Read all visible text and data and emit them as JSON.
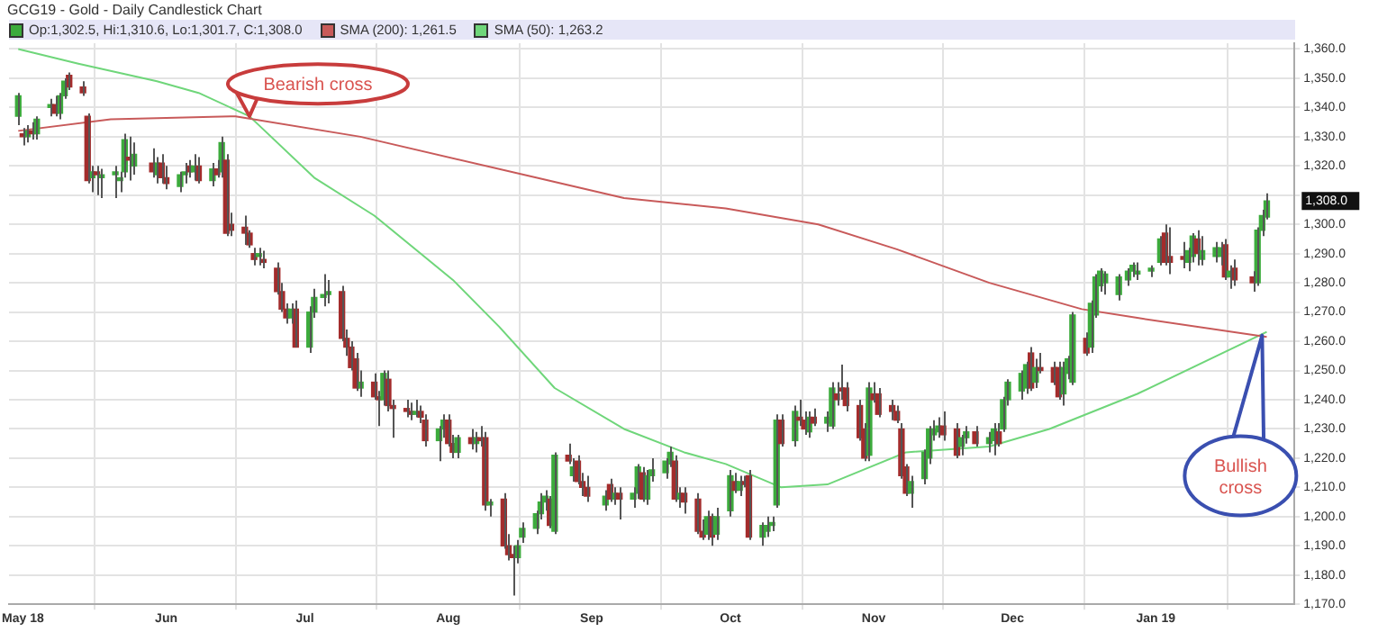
{
  "chart_data": {
    "type": "candlestick",
    "title": "GCG19 - Gold - Daily Candlestick Chart",
    "annotations": [
      "Op:1,302.5, Hi:1,310.6, Lo:1,301.7, C:1,308.0",
      {
        "text": "Bearish cross",
        "x": "2018-06-19",
        "y": 1337
      },
      {
        "text": "Bullish cross",
        "x": "2019-01-24",
        "y": 1262
      },
      "1,308.0"
    ],
    "x": [
      "2018-04-30",
      "2018-05-01",
      "2018-05-02",
      "2018-05-03",
      "2018-05-04",
      "2018-05-07",
      "2018-05-08",
      "2018-05-09",
      "2018-05-10",
      "2018-05-11",
      "2018-05-14",
      "2018-05-15",
      "2018-05-16",
      "2018-05-17",
      "2018-05-18",
      "2018-05-21",
      "2018-05-22",
      "2018-05-23",
      "2018-05-24",
      "2018-05-25",
      "2018-05-29",
      "2018-05-30",
      "2018-05-31",
      "2018-06-01",
      "2018-06-04",
      "2018-06-05",
      "2018-06-06",
      "2018-06-07",
      "2018-06-08",
      "2018-06-11",
      "2018-06-12",
      "2018-06-13",
      "2018-06-14",
      "2018-06-15",
      "2018-06-18",
      "2018-06-19",
      "2018-06-20",
      "2018-06-21",
      "2018-06-22",
      "2018-06-25",
      "2018-06-26",
      "2018-06-27",
      "2018-06-28",
      "2018-06-29",
      "2018-07-02",
      "2018-07-03",
      "2018-07-05",
      "2018-07-06",
      "2018-07-09",
      "2018-07-10",
      "2018-07-11",
      "2018-07-12",
      "2018-07-13",
      "2018-07-16",
      "2018-07-17",
      "2018-07-18",
      "2018-07-19",
      "2018-07-20",
      "2018-07-23",
      "2018-07-24",
      "2018-07-25",
      "2018-07-26",
      "2018-07-27",
      "2018-07-30",
      "2018-07-31",
      "2018-08-01",
      "2018-08-02",
      "2018-08-03",
      "2018-08-06",
      "2018-08-07",
      "2018-08-08",
      "2018-08-09",
      "2018-08-10",
      "2018-08-13",
      "2018-08-14",
      "2018-08-15",
      "2018-08-16",
      "2018-08-17",
      "2018-08-20",
      "2018-08-21",
      "2018-08-22",
      "2018-08-23",
      "2018-08-24",
      "2018-08-27",
      "2018-08-28",
      "2018-08-29",
      "2018-08-30",
      "2018-08-31",
      "2018-09-04",
      "2018-09-05",
      "2018-09-06",
      "2018-09-07",
      "2018-09-10",
      "2018-09-11",
      "2018-09-12",
      "2018-09-13",
      "2018-09-14",
      "2018-09-17",
      "2018-09-18",
      "2018-09-19",
      "2018-09-20",
      "2018-09-21",
      "2018-09-24",
      "2018-09-25",
      "2018-09-26",
      "2018-09-27",
      "2018-09-28",
      "2018-10-01",
      "2018-10-02",
      "2018-10-03",
      "2018-10-04",
      "2018-10-05",
      "2018-10-08",
      "2018-10-09",
      "2018-10-10",
      "2018-10-11",
      "2018-10-12",
      "2018-10-15",
      "2018-10-16",
      "2018-10-17",
      "2018-10-18",
      "2018-10-19",
      "2018-10-22",
      "2018-10-23",
      "2018-10-24",
      "2018-10-25",
      "2018-10-26",
      "2018-10-29",
      "2018-10-30",
      "2018-10-31",
      "2018-11-01",
      "2018-11-02",
      "2018-11-05",
      "2018-11-06",
      "2018-11-07",
      "2018-11-08",
      "2018-11-09",
      "2018-11-12",
      "2018-11-13",
      "2018-11-14",
      "2018-11-15",
      "2018-11-16",
      "2018-11-19",
      "2018-11-20",
      "2018-11-21",
      "2018-11-23",
      "2018-11-26",
      "2018-11-27",
      "2018-11-28",
      "2018-11-29",
      "2018-11-30",
      "2018-12-03",
      "2018-12-04",
      "2018-12-05",
      "2018-12-06",
      "2018-12-07",
      "2018-12-10",
      "2018-12-11",
      "2018-12-12",
      "2018-12-13",
      "2018-12-14",
      "2018-12-17",
      "2018-12-18",
      "2018-12-19",
      "2018-12-20",
      "2018-12-21",
      "2018-12-24",
      "2018-12-26",
      "2018-12-27",
      "2018-12-28",
      "2018-12-31",
      "2019-01-02",
      "2019-01-03",
      "2019-01-04",
      "2019-01-07",
      "2019-01-08",
      "2019-01-09",
      "2019-01-10",
      "2019-01-11",
      "2019-01-14",
      "2019-01-15",
      "2019-01-16",
      "2019-01-17",
      "2019-01-18",
      "2019-01-22",
      "2019-01-23",
      "2019-01-24",
      "2019-01-25"
    ],
    "ohlc": [
      [
        1337,
        1345,
        1334,
        1344
      ],
      [
        1331,
        1333,
        1327,
        1330
      ],
      [
        1330,
        1334,
        1328,
        1332
      ],
      [
        1332,
        1335,
        1329,
        1331
      ],
      [
        1331,
        1337,
        1329,
        1336
      ],
      [
        1340,
        1343,
        1337,
        1341
      ],
      [
        1341,
        1344,
        1337,
        1338
      ],
      [
        1338,
        1345,
        1336,
        1344
      ],
      [
        1344,
        1350,
        1343,
        1349
      ],
      [
        1351,
        1352,
        1346,
        1347
      ],
      [
        1347,
        1349,
        1344,
        1345
      ],
      [
        1337,
        1338,
        1314,
        1315
      ],
      [
        1316,
        1320,
        1311,
        1318
      ],
      [
        1318,
        1320,
        1310,
        1317
      ],
      [
        1316,
        1319,
        1309,
        1317
      ],
      [
        1317,
        1320,
        1309,
        1318
      ],
      [
        1315,
        1318,
        1311,
        1316
      ],
      [
        1318,
        1331,
        1316,
        1329
      ],
      [
        1323,
        1330,
        1315,
        1322
      ],
      [
        1320,
        1328,
        1317,
        1324
      ],
      [
        1321,
        1326,
        1316,
        1318
      ],
      [
        1317,
        1323,
        1314,
        1321
      ],
      [
        1321,
        1324,
        1314,
        1316
      ],
      [
        1316,
        1320,
        1312,
        1314
      ],
      [
        1313,
        1318,
        1311,
        1317
      ],
      [
        1317,
        1321,
        1314,
        1318
      ],
      [
        1320,
        1322,
        1316,
        1318
      ],
      [
        1318,
        1324,
        1315,
        1320
      ],
      [
        1320,
        1323,
        1314,
        1315
      ],
      [
        1315,
        1321,
        1313,
        1319
      ],
      [
        1319,
        1322,
        1316,
        1317
      ],
      [
        1318,
        1330,
        1316,
        1328
      ],
      [
        1322,
        1324,
        1296,
        1297
      ],
      [
        1300,
        1304,
        1296,
        1298
      ],
      [
        1299,
        1303,
        1293,
        1297
      ],
      [
        1297,
        1298,
        1292,
        1293
      ],
      [
        1290,
        1292,
        1286,
        1288
      ],
      [
        1289,
        1292,
        1286,
        1290
      ],
      [
        1288,
        1291,
        1285,
        1287
      ],
      [
        1285,
        1287,
        1276,
        1277
      ],
      [
        1277,
        1280,
        1270,
        1271
      ],
      [
        1271,
        1273,
        1266,
        1268
      ],
      [
        1268,
        1273,
        1266,
        1271
      ],
      [
        1271,
        1274,
        1258,
        1258
      ],
      [
        1258,
        1272,
        1256,
        1270
      ],
      [
        1270,
        1278,
        1268,
        1275
      ],
      [
        1275,
        1283,
        1272,
        1276
      ],
      [
        1276,
        1281,
        1273,
        1277
      ],
      [
        1277,
        1279,
        1260,
        1261
      ],
      [
        1261,
        1264,
        1255,
        1258
      ],
      [
        1258,
        1260,
        1250,
        1251
      ],
      [
        1254,
        1256,
        1243,
        1244
      ],
      [
        1244,
        1250,
        1241,
        1246
      ],
      [
        1246,
        1249,
        1240,
        1241
      ],
      [
        1241,
        1243,
        1231,
        1240
      ],
      [
        1240,
        1250,
        1238,
        1249
      ],
      [
        1247,
        1250,
        1236,
        1238
      ],
      [
        1238,
        1240,
        1227,
        1237
      ],
      [
        1237,
        1240,
        1234,
        1236
      ],
      [
        1236,
        1239,
        1233,
        1235
      ],
      [
        1235,
        1240,
        1234,
        1236
      ],
      [
        1236,
        1238,
        1232,
        1234
      ],
      [
        1233,
        1235,
        1224,
        1226
      ],
      [
        1226,
        1231,
        1219,
        1230
      ],
      [
        1230,
        1235,
        1227,
        1233
      ],
      [
        1233,
        1235,
        1224,
        1225
      ],
      [
        1225,
        1228,
        1220,
        1222
      ],
      [
        1222,
        1228,
        1220,
        1227
      ],
      [
        1227,
        1230,
        1223,
        1225
      ],
      [
        1225,
        1229,
        1222,
        1227
      ],
      [
        1227,
        1231,
        1224,
        1226
      ],
      [
        1227,
        1229,
        1202,
        1204
      ],
      [
        1204,
        1206,
        1200,
        1205
      ],
      [
        1206,
        1208,
        1189,
        1190
      ],
      [
        1190,
        1194,
        1185,
        1187
      ],
      [
        1187,
        1190,
        1173,
        1186
      ],
      [
        1186,
        1192,
        1184,
        1190
      ],
      [
        1193,
        1198,
        1191,
        1196
      ],
      [
        1196,
        1202,
        1194,
        1201
      ],
      [
        1201,
        1208,
        1199,
        1205
      ],
      [
        1205,
        1209,
        1202,
        1207
      ],
      [
        1206,
        1207,
        1196,
        1197
      ],
      [
        1195,
        1222,
        1194,
        1221
      ],
      [
        1221,
        1225,
        1218,
        1219
      ],
      [
        1214,
        1220,
        1212,
        1217
      ],
      [
        1219,
        1221,
        1211,
        1212
      ],
      [
        1212,
        1215,
        1207,
        1210
      ],
      [
        1210,
        1214,
        1205,
        1207
      ],
      [
        1204,
        1209,
        1202,
        1207
      ],
      [
        1211,
        1213,
        1205,
        1206
      ],
      [
        1206,
        1210,
        1204,
        1208
      ],
      [
        1208,
        1210,
        1199,
        1206
      ],
      [
        1206,
        1210,
        1203,
        1208
      ],
      [
        1208,
        1218,
        1206,
        1217
      ],
      [
        1215,
        1217,
        1205,
        1206
      ],
      [
        1206,
        1216,
        1204,
        1214
      ],
      [
        1214,
        1220,
        1212,
        1216
      ],
      [
        1215,
        1220,
        1213,
        1219
      ],
      [
        1218,
        1224,
        1217,
        1222
      ],
      [
        1219,
        1221,
        1205,
        1206
      ],
      [
        1206,
        1210,
        1203,
        1208
      ],
      [
        1208,
        1210,
        1201,
        1205
      ],
      [
        1206,
        1208,
        1194,
        1195
      ],
      [
        1195,
        1199,
        1192,
        1193
      ],
      [
        1194,
        1202,
        1192,
        1200
      ],
      [
        1200,
        1201,
        1190,
        1193
      ],
      [
        1194,
        1203,
        1192,
        1200
      ],
      [
        1202,
        1216,
        1200,
        1214
      ],
      [
        1212,
        1215,
        1208,
        1209
      ],
      [
        1209,
        1214,
        1207,
        1212
      ],
      [
        1212,
        1214,
        1210,
        1211
      ],
      [
        1214,
        1216,
        1192,
        1193
      ],
      [
        1193,
        1198,
        1190,
        1197
      ],
      [
        1195,
        1200,
        1193,
        1197
      ],
      [
        1197,
        1200,
        1195,
        1198
      ],
      [
        1204,
        1235,
        1203,
        1233
      ],
      [
        1233,
        1235,
        1224,
        1225
      ],
      [
        1226,
        1238,
        1224,
        1236
      ],
      [
        1234,
        1240,
        1231,
        1233
      ],
      [
        1233,
        1236,
        1228,
        1230
      ],
      [
        1229,
        1236,
        1227,
        1234
      ],
      [
        1234,
        1237,
        1231,
        1232
      ],
      [
        1232,
        1236,
        1229,
        1234
      ],
      [
        1231,
        1246,
        1230,
        1244
      ],
      [
        1242,
        1246,
        1238,
        1240
      ],
      [
        1244,
        1252,
        1240,
        1243
      ],
      [
        1244,
        1246,
        1236,
        1238
      ],
      [
        1238,
        1240,
        1226,
        1227
      ],
      [
        1230,
        1232,
        1219,
        1220
      ],
      [
        1221,
        1246,
        1219,
        1244
      ],
      [
        1242,
        1246,
        1239,
        1240
      ],
      [
        1242,
        1244,
        1234,
        1235
      ],
      [
        1238,
        1240,
        1233,
        1236
      ],
      [
        1236,
        1238,
        1232,
        1233
      ],
      [
        1230,
        1232,
        1213,
        1214
      ],
      [
        1217,
        1218,
        1207,
        1208
      ],
      [
        1208,
        1214,
        1203,
        1212
      ],
      [
        1213,
        1223,
        1211,
        1222
      ],
      [
        1220,
        1231,
        1218,
        1230
      ],
      [
        1228,
        1233,
        1226,
        1230
      ],
      [
        1229,
        1234,
        1227,
        1231
      ],
      [
        1231,
        1236,
        1226,
        1228
      ],
      [
        1230,
        1232,
        1220,
        1221
      ],
      [
        1224,
        1228,
        1221,
        1227
      ],
      [
        1227,
        1231,
        1225,
        1229
      ],
      [
        1229,
        1231,
        1224,
        1225
      ],
      [
        1225,
        1229,
        1222,
        1227
      ],
      [
        1226,
        1232,
        1221,
        1230
      ],
      [
        1229,
        1232,
        1224,
        1225
      ],
      [
        1230,
        1241,
        1229,
        1240
      ],
      [
        1240,
        1247,
        1238,
        1246
      ],
      [
        1243,
        1250,
        1240,
        1249
      ],
      [
        1244,
        1253,
        1242,
        1252
      ],
      [
        1256,
        1258,
        1243,
        1244
      ],
      [
        1246,
        1254,
        1244,
        1251
      ],
      [
        1251,
        1256,
        1249,
        1250
      ],
      [
        1251,
        1253,
        1245,
        1246
      ],
      [
        1251,
        1253,
        1240,
        1241
      ],
      [
        1242,
        1253,
        1238,
        1251
      ],
      [
        1249,
        1255,
        1247,
        1254
      ],
      [
        1246,
        1270,
        1245,
        1269
      ],
      [
        1261,
        1263,
        1255,
        1256
      ],
      [
        1258,
        1274,
        1256,
        1273
      ],
      [
        1269,
        1283,
        1268,
        1282
      ],
      [
        1279,
        1285,
        1277,
        1284
      ],
      [
        1280,
        1284,
        1276,
        1283
      ],
      [
        1276,
        1283,
        1274,
        1282
      ],
      [
        1281,
        1285,
        1279,
        1284
      ],
      [
        1284,
        1287,
        1282,
        1286
      ],
      [
        1283,
        1287,
        1281,
        1284
      ],
      [
        1284,
        1286,
        1282,
        1285
      ],
      [
        1287,
        1296,
        1286,
        1295
      ],
      [
        1297,
        1300,
        1286,
        1287
      ],
      [
        1289,
        1299,
        1283,
        1287
      ],
      [
        1289,
        1294,
        1285,
        1288
      ],
      [
        1287,
        1292,
        1284,
        1291
      ],
      [
        1289,
        1297,
        1287,
        1296
      ],
      [
        1295,
        1298,
        1286,
        1290
      ],
      [
        1288,
        1296,
        1286,
        1291
      ],
      [
        1289,
        1294,
        1287,
        1292
      ],
      [
        1289,
        1294,
        1286,
        1292
      ],
      [
        1293,
        1295,
        1281,
        1282
      ],
      [
        1282,
        1286,
        1278,
        1284
      ],
      [
        1285,
        1288,
        1279,
        1281
      ],
      [
        1282,
        1284,
        1277,
        1280
      ],
      [
        1280,
        1299,
        1279,
        1298
      ],
      [
        1298,
        1305,
        1296,
        1303
      ],
      [
        1302.5,
        1310.6,
        1301.7,
        1308.0
      ]
    ],
    "series": [
      {
        "type": "line",
        "name": "SMA (200): 1,261.5",
        "color": "#c85a5a",
        "x": [
          "2018-04-30",
          "2018-05-20",
          "2018-06-16",
          "2018-07-13",
          "2018-08-20",
          "2018-09-08",
          "2018-09-30",
          "2018-10-20",
          "2018-11-06",
          "2018-11-26",
          "2018-12-16",
          "2018-12-28",
          "2019-01-25"
        ],
        "values": [
          1332,
          1336,
          1337,
          1330,
          1316,
          1309,
          1305.5,
          1300,
          1291.5,
          1280,
          1271,
          1268,
          1261.5
        ]
      },
      {
        "type": "line",
        "name": "SMA (50): 1,263.2",
        "color": "#6fd67a",
        "x": [
          "2018-04-30",
          "2018-05-13",
          "2018-05-30",
          "2018-06-08",
          "2018-06-19",
          "2018-07-03",
          "2018-07-16",
          "2018-08-02",
          "2018-08-12",
          "2018-08-24",
          "2018-09-08",
          "2018-09-21",
          "2018-09-30",
          "2018-10-12",
          "2018-10-22",
          "2018-11-08",
          "2018-11-26",
          "2018-12-09",
          "2018-12-28",
          "2019-01-25"
        ],
        "values": [
          1360,
          1355,
          1349,
          1345,
          1337,
          1316,
          1303,
          1281,
          1265,
          1244,
          1230,
          1222,
          1218,
          1210,
          1211,
          1222,
          1224,
          1230,
          1242,
          1263.2
        ]
      }
    ],
    "xlim": [
      "2018-04-28",
      "2019-01-31"
    ],
    "xticks": [
      {
        "value": "2018-05-01",
        "label": "May 18"
      },
      {
        "value": "2018-06-01",
        "label": "Jun"
      },
      {
        "value": "2018-07-01",
        "label": "Jul"
      },
      {
        "value": "2018-08-01",
        "label": "Aug"
      },
      {
        "value": "2018-09-01",
        "label": "Sep"
      },
      {
        "value": "2018-10-01",
        "label": "Oct"
      },
      {
        "value": "2018-11-01",
        "label": "Nov"
      },
      {
        "value": "2018-12-01",
        "label": "Dec"
      },
      {
        "value": "2019-01-01",
        "label": "Jan 19"
      }
    ],
    "ylim": [
      1170,
      1362
    ],
    "yticks": [
      {
        "value": 1170,
        "label": "1,170.0"
      },
      {
        "value": 1180,
        "label": "1,180.0"
      },
      {
        "value": 1190,
        "label": "1,190.0"
      },
      {
        "value": 1200,
        "label": "1,200.0"
      },
      {
        "value": 1210,
        "label": "1,210.0"
      },
      {
        "value": 1220,
        "label": "1,220.0"
      },
      {
        "value": 1230,
        "label": "1,230.0"
      },
      {
        "value": 1240,
        "label": "1,240.0"
      },
      {
        "value": 1250,
        "label": "1,250.0"
      },
      {
        "value": 1260,
        "label": "1,260.0"
      },
      {
        "value": 1270,
        "label": "1,270.0"
      },
      {
        "value": 1280,
        "label": "1,280.0"
      },
      {
        "value": 1290,
        "label": "1,290.0"
      },
      {
        "value": 1300,
        "label": "1,300.0"
      },
      {
        "value": 1310,
        "label": null
      },
      {
        "value": 1320,
        "label": "1,320.0"
      },
      {
        "value": 1330,
        "label": "1,330.0"
      },
      {
        "value": 1340,
        "label": "1,340.0"
      },
      {
        "value": 1350,
        "label": "1,350.0"
      },
      {
        "value": 1360,
        "label": "1,360.0"
      }
    ],
    "grid": true,
    "legend": "top left"
  }
}
